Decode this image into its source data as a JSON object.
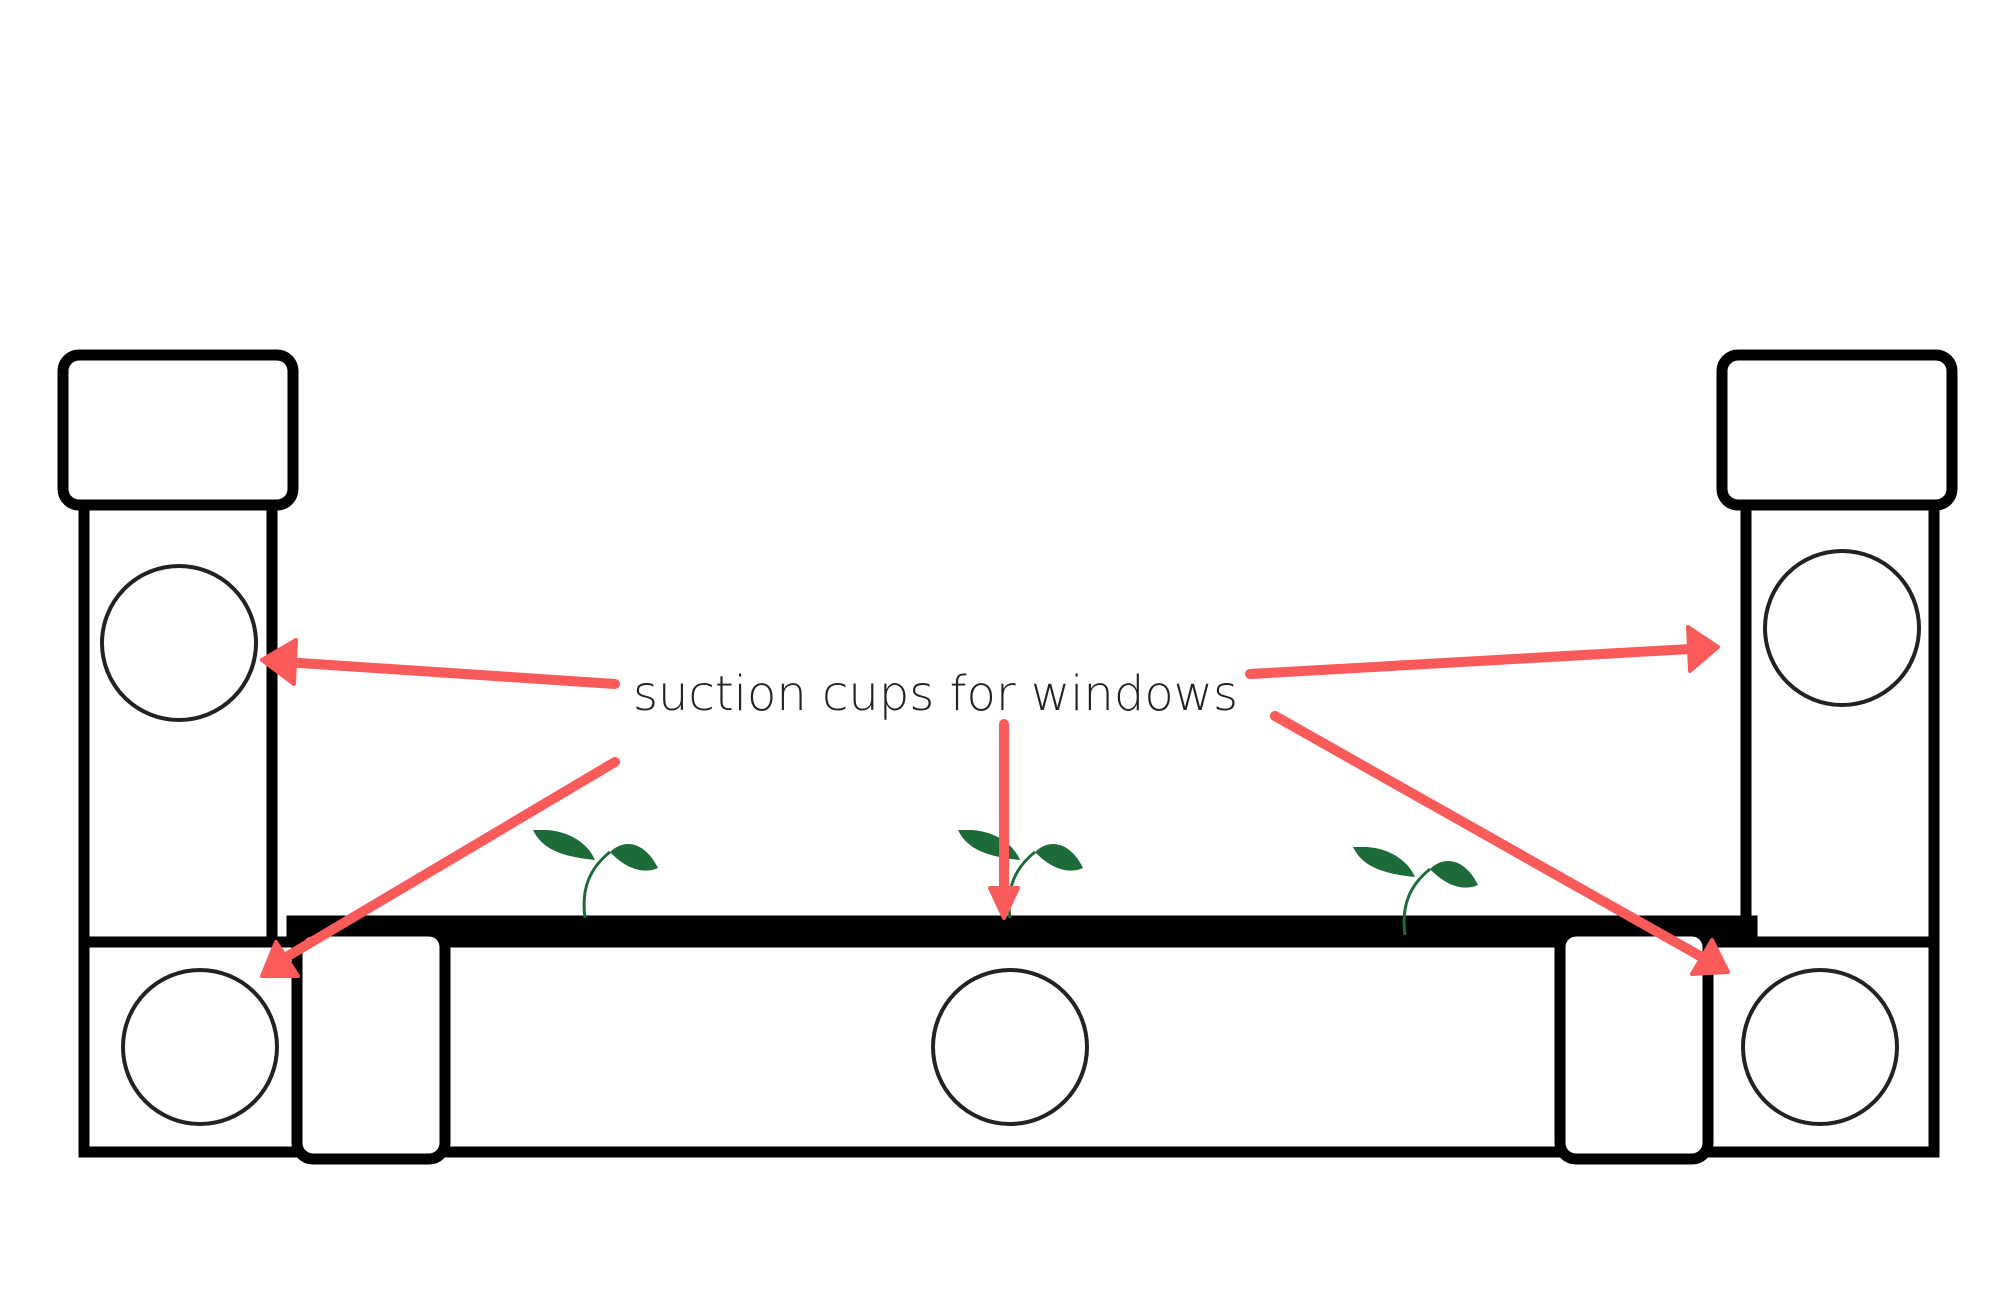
{
  "label": "suction cups for windows",
  "colors": {
    "arrow": "#fa5a5a",
    "leaf": "#1e6b3a",
    "outline": "#000000"
  },
  "icons": {
    "sprout": "sprout-icon",
    "arrow": "arrow-icon"
  }
}
